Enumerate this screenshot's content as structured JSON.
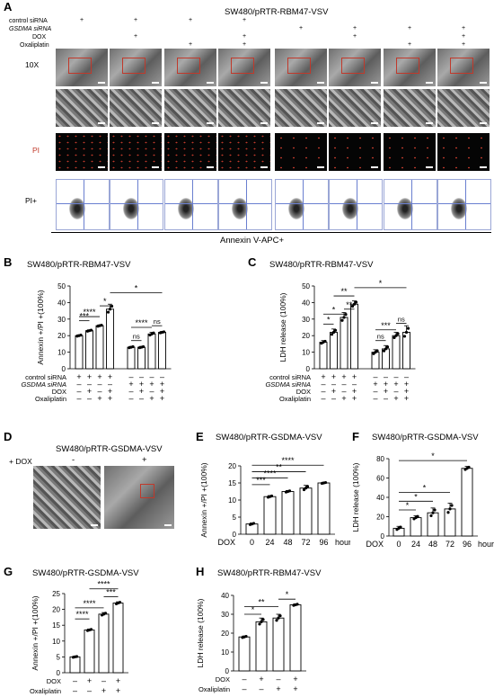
{
  "panels": {
    "A": {
      "label": "A",
      "title": "SW480/pRTR-RBM47-VSV",
      "conditions": [
        "control siRNA",
        "GSDMA siRNA",
        "DOX",
        "Oxaliplatin"
      ],
      "row_labels": [
        "10X",
        "PI",
        "PI+"
      ],
      "xlabel": "Annexin V-APC+"
    },
    "B": {
      "label": "B",
      "title": "SW480/pRTR-RBM47-VSV"
    },
    "C": {
      "label": "C",
      "title": "SW480/pRTR-RBM47-VSV"
    },
    "D": {
      "label": "D",
      "title": "SW480/pRTR-GSDMA-VSV",
      "row_label": "+ DOX",
      "cols": [
        "-",
        "+"
      ]
    },
    "E": {
      "label": "E",
      "title": "SW480/pRTR-GSDMA-VSV"
    },
    "F": {
      "label": "F",
      "title": "SW480/pRTR-GSDMA-VSV"
    },
    "G": {
      "label": "G",
      "title": "SW480/pRTR-GSDMA-VSV"
    },
    "H": {
      "label": "H",
      "title": "SW480/pRTR-RBM47-VSV"
    }
  },
  "chart_data": [
    {
      "id": "B",
      "type": "bar",
      "ylabel": "Annexin +/PI +(100%)",
      "ylim": [
        0,
        50
      ],
      "yticks": [
        0,
        10,
        20,
        30,
        40,
        50
      ],
      "values": [
        20,
        23,
        26,
        36,
        13,
        13,
        21,
        22
      ],
      "errors": [
        0.5,
        0.5,
        0.5,
        3,
        0.5,
        0.5,
        1,
        0.5
      ],
      "row_labels": [
        "control siRNA",
        "GSDMA siRNA",
        "DOX",
        "Oxaliplatin"
      ],
      "marks": [
        [
          "+",
          "+",
          "+",
          "+",
          "-",
          "-",
          "-",
          "-"
        ],
        [
          "-",
          "-",
          "-",
          "-",
          "+",
          "+",
          "+",
          "+"
        ],
        [
          "-",
          "+",
          "-",
          "+",
          "-",
          "+",
          "-",
          "+"
        ],
        [
          "-",
          "-",
          "+",
          "+",
          "-",
          "-",
          "+",
          "+"
        ]
      ],
      "sig": [
        {
          "a": 0,
          "b": 1,
          "label": "***",
          "y": 29
        },
        {
          "a": 0,
          "b": 2,
          "label": "****",
          "y": 31.5
        },
        {
          "a": 2,
          "b": 3,
          "label": "*",
          "y": 38
        },
        {
          "a": 3,
          "b": 7,
          "label": "*",
          "y": 46
        },
        {
          "a": 4,
          "b": 6,
          "label": "****",
          "y": 25
        },
        {
          "a": 4,
          "b": 5,
          "label": "ns",
          "y": 17
        },
        {
          "a": 6,
          "b": 7,
          "label": "ns",
          "y": 26
        }
      ]
    },
    {
      "id": "C",
      "type": "bar",
      "ylabel": "LDH release (100%)",
      "ylim": [
        0,
        50
      ],
      "yticks": [
        0,
        10,
        20,
        30,
        40,
        50
      ],
      "values": [
        16,
        22,
        31,
        39,
        10,
        12,
        20,
        22
      ],
      "errors": [
        1,
        2,
        3,
        2,
        1.5,
        2,
        2,
        4
      ],
      "row_labels": [
        "control siRNA",
        "GSDMA siRNA",
        "DOX",
        "Oxaliplatin"
      ],
      "marks": [
        [
          "+",
          "+",
          "+",
          "+",
          "-",
          "-",
          "-",
          "-"
        ],
        [
          "-",
          "-",
          "-",
          "-",
          "+",
          "+",
          "+",
          "+"
        ],
        [
          "-",
          "+",
          "-",
          "+",
          "-",
          "+",
          "-",
          "+"
        ],
        [
          "-",
          "-",
          "+",
          "+",
          "-",
          "-",
          "+",
          "+"
        ]
      ],
      "sig": [
        {
          "a": 0,
          "b": 1,
          "label": "*",
          "y": 27
        },
        {
          "a": 0,
          "b": 2,
          "label": "*",
          "y": 33
        },
        {
          "a": 1,
          "b": 3,
          "label": "**",
          "y": 44
        },
        {
          "a": 2,
          "b": 3,
          "label": "**",
          "y": 36
        },
        {
          "a": 3,
          "b": 7,
          "label": "*",
          "y": 49
        },
        {
          "a": 4,
          "b": 6,
          "label": "***",
          "y": 23.5
        },
        {
          "a": 4,
          "b": 5,
          "label": "ns",
          "y": 17
        },
        {
          "a": 6,
          "b": 7,
          "label": "ns",
          "y": 27.5
        }
      ]
    },
    {
      "id": "E",
      "type": "bar",
      "ylabel": "Annexin +/PI +(100%)",
      "ylim": [
        0,
        20
      ],
      "yticks": [
        0,
        5,
        10,
        15,
        20
      ],
      "values": [
        3,
        11,
        12.5,
        13.5,
        15
      ],
      "errors": [
        0.3,
        0.3,
        0.3,
        0.8,
        0.2
      ],
      "xlead": "DOX",
      "categories": [
        "0",
        "24",
        "48",
        "72",
        "96"
      ],
      "xunit": "hours",
      "sig": [
        {
          "a": 0,
          "b": 1,
          "label": "***",
          "y": 14.5
        },
        {
          "a": 0,
          "b": 2,
          "label": "****",
          "y": 16.5
        },
        {
          "a": 0,
          "b": 3,
          "label": "**",
          "y": 18.3
        },
        {
          "a": 0,
          "b": 4,
          "label": "****",
          "y": 20.2
        }
      ]
    },
    {
      "id": "F",
      "type": "bar",
      "ylabel": "LDH release (100%)",
      "ylim": [
        0,
        80
      ],
      "yticks": [
        0,
        20,
        40,
        60,
        80
      ],
      "values": [
        8,
        19,
        24,
        28,
        70
      ],
      "errors": [
        2,
        2,
        5,
        6,
        2
      ],
      "xlead": "DOX",
      "categories": [
        "0",
        "24",
        "48",
        "72",
        "96"
      ],
      "xunit": "hours",
      "sig": [
        {
          "a": 0,
          "b": 1,
          "label": "*",
          "y": 27
        },
        {
          "a": 0,
          "b": 2,
          "label": "*",
          "y": 36
        },
        {
          "a": 0,
          "b": 3,
          "label": "*",
          "y": 45
        },
        {
          "a": 0,
          "b": 4,
          "label": "*",
          "y": 78
        }
      ]
    },
    {
      "id": "G",
      "type": "bar",
      "ylabel": "Annexin +/PI +(100%)",
      "ylim": [
        0,
        25
      ],
      "yticks": [
        0,
        5,
        10,
        15,
        20,
        25
      ],
      "values": [
        5,
        13.5,
        18.5,
        22
      ],
      "errors": [
        0.2,
        0.3,
        0.5,
        0.4
      ],
      "row_labels": [
        "DOX",
        "Oxaliplatin"
      ],
      "marks": [
        [
          "-",
          "+",
          "-",
          "+"
        ],
        [
          "-",
          "-",
          "+",
          "+"
        ]
      ],
      "sig": [
        {
          "a": 0,
          "b": 1,
          "label": "****",
          "y": 17
        },
        {
          "a": 0,
          "b": 2,
          "label": "****",
          "y": 20.5
        },
        {
          "a": 1,
          "b": 3,
          "label": "****",
          "y": 26.5
        },
        {
          "a": 2,
          "b": 3,
          "label": "***",
          "y": 24
        }
      ]
    },
    {
      "id": "H",
      "type": "bar",
      "ylabel": "LDH release (100%)",
      "ylim": [
        0,
        40
      ],
      "yticks": [
        0,
        10,
        20,
        30,
        40
      ],
      "values": [
        18,
        26,
        28,
        35
      ],
      "errors": [
        0.5,
        2,
        2,
        0.5
      ],
      "row_labels": [
        "DOX",
        "Oxaliplatin"
      ],
      "marks": [
        [
          "-",
          "+",
          "-",
          "+"
        ],
        [
          "-",
          "-",
          "+",
          "+"
        ]
      ],
      "sig": [
        {
          "a": 0,
          "b": 1,
          "label": "*",
          "y": 30
        },
        {
          "a": 0,
          "b": 2,
          "label": "**",
          "y": 34
        },
        {
          "a": 2,
          "b": 3,
          "label": "*",
          "y": 38
        }
      ]
    }
  ]
}
